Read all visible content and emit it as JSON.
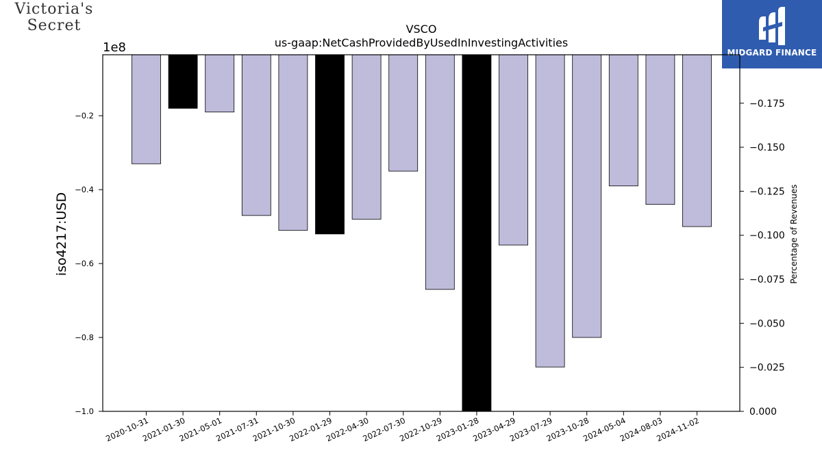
{
  "logos": {
    "company_line1": "Victoria's",
    "company_line2": "Secret",
    "brand": "MIDGARD FINANCE"
  },
  "chart_data": {
    "type": "bar",
    "title": "VSCO",
    "subtitle": "us-gaap:NetCashProvidedByUsedInInvestingActivities",
    "ylabel": "iso4217:USD",
    "y2label": "Percentage of Revenues",
    "offset_label": "1e8",
    "categories": [
      "2020-10-31",
      "2021-01-30",
      "2021-05-01",
      "2021-07-31",
      "2021-10-30",
      "2022-01-29",
      "2022-04-30",
      "2022-07-30",
      "2022-10-29",
      "2023-01-28",
      "2023-04-29",
      "2023-07-29",
      "2023-10-28",
      "2024-05-04",
      "2024-08-03",
      "2024-11-02"
    ],
    "values": [
      -33000000,
      -18000000,
      -19000000,
      -47000000,
      -51000000,
      -52000000,
      -48000000,
      -35000000,
      -67000000,
      -102000000,
      -55000000,
      -88000000,
      -80000000,
      -39000000,
      -44000000,
      -50000000
    ],
    "highlight": [
      false,
      true,
      false,
      false,
      false,
      true,
      false,
      false,
      false,
      true,
      false,
      false,
      false,
      false,
      false,
      false
    ],
    "ylim": [
      -100000000,
      -3500000
    ],
    "yticks": [
      -20000000,
      -40000000,
      -60000000,
      -80000000,
      -100000000
    ],
    "ytick_labels": [
      "−0.2",
      "−0.4",
      "−0.6",
      "−0.8",
      "−1.0"
    ],
    "y2lim": [
      0.0,
      -0.2025
    ],
    "y2ticks": [
      -0.175,
      -0.15,
      -0.125,
      -0.1,
      -0.075,
      -0.05,
      -0.025,
      0.0
    ],
    "y2tick_labels": [
      "−0.175",
      "−0.150",
      "−0.125",
      "−0.100",
      "−0.075",
      "−0.050",
      "−0.025",
      "0.000"
    ],
    "colors": {
      "normal": "#bebbdb",
      "highlight": "#000000",
      "edge": "#000000"
    },
    "grid": false,
    "legend": "none"
  }
}
